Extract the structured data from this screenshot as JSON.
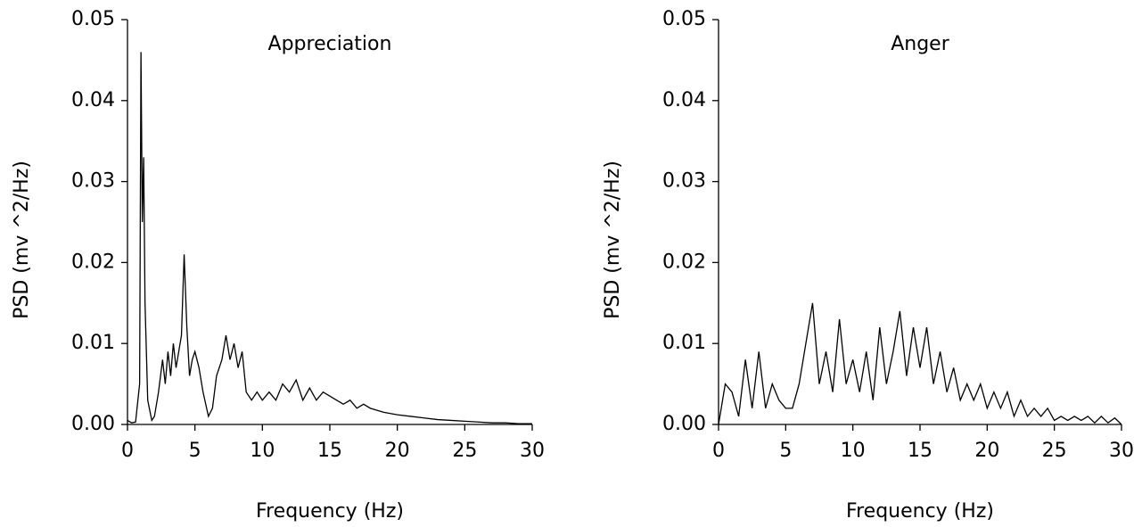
{
  "chart_data": [
    {
      "type": "line",
      "title": "Appreciation",
      "xlabel": "Frequency (Hz)",
      "ylabel": "PSD (mv ^2/Hz)",
      "x": [
        0,
        0.3,
        0.6,
        0.9,
        1.0,
        1.1,
        1.2,
        1.3,
        1.5,
        1.8,
        2.0,
        2.3,
        2.6,
        2.8,
        3.0,
        3.2,
        3.4,
        3.6,
        3.8,
        4.0,
        4.2,
        4.4,
        4.6,
        4.8,
        5.0,
        5.3,
        5.6,
        6.0,
        6.3,
        6.6,
        7.0,
        7.3,
        7.6,
        7.9,
        8.2,
        8.5,
        8.8,
        9.2,
        9.6,
        10,
        10.5,
        11,
        11.5,
        12,
        12.5,
        13,
        13.5,
        14,
        14.5,
        15,
        15.5,
        16,
        16.5,
        17,
        17.5,
        18,
        19,
        20,
        21,
        22,
        23,
        24,
        25,
        26,
        27,
        28,
        29,
        30
      ],
      "series": [
        {
          "color": "#000000",
          "values": [
            0.0005,
            0.0002,
            0.0003,
            0.005,
            0.046,
            0.025,
            0.033,
            0.015,
            0.003,
            0.0005,
            0.001,
            0.004,
            0.008,
            0.005,
            0.009,
            0.006,
            0.01,
            0.007,
            0.009,
            0.011,
            0.021,
            0.012,
            0.006,
            0.008,
            0.009,
            0.007,
            0.004,
            0.001,
            0.002,
            0.006,
            0.008,
            0.011,
            0.008,
            0.01,
            0.007,
            0.009,
            0.004,
            0.003,
            0.004,
            0.003,
            0.004,
            0.003,
            0.005,
            0.004,
            0.0055,
            0.003,
            0.0045,
            0.003,
            0.004,
            0.0035,
            0.003,
            0.0025,
            0.003,
            0.002,
            0.0025,
            0.002,
            0.0015,
            0.0012,
            0.001,
            0.0008,
            0.0006,
            0.0005,
            0.0004,
            0.0003,
            0.0002,
            0.0002,
            0.0001,
            0.0001
          ]
        }
      ],
      "xlim": [
        0,
        30
      ],
      "xticks": [
        0,
        5,
        10,
        15,
        20,
        25,
        30
      ],
      "ylim": [
        0,
        0.05
      ],
      "yticks": [
        {
          "value": 0,
          "label": "0.00"
        },
        0.01,
        0.02,
        0.03,
        0.04,
        0.05
      ]
    },
    {
      "type": "line",
      "title": "Anger",
      "xlabel": "Frequency (Hz)",
      "ylabel": "PSD (mv ^2/Hz)",
      "x": [
        0,
        0.5,
        1,
        1.5,
        2,
        2.5,
        3,
        3.5,
        4,
        4.5,
        5,
        5.5,
        6,
        6.5,
        7,
        7.5,
        8,
        8.5,
        9,
        9.5,
        10,
        10.5,
        11,
        11.5,
        12,
        12.5,
        13,
        13.5,
        14,
        14.5,
        15,
        15.5,
        16,
        16.5,
        17,
        17.5,
        18,
        18.5,
        19,
        19.5,
        20,
        20.5,
        21,
        21.5,
        22,
        22.5,
        23,
        23.5,
        24,
        24.5,
        25,
        25.5,
        26,
        26.5,
        27,
        27.5,
        28,
        28.5,
        29,
        29.5,
        30
      ],
      "series": [
        {
          "color": "#000000",
          "values": [
            0,
            0.005,
            0.004,
            0.001,
            0.008,
            0.002,
            0.009,
            0.002,
            0.005,
            0.003,
            0.002,
            0.002,
            0.005,
            0.01,
            0.015,
            0.005,
            0.009,
            0.004,
            0.013,
            0.005,
            0.008,
            0.004,
            0.009,
            0.003,
            0.012,
            0.005,
            0.009,
            0.014,
            0.006,
            0.012,
            0.007,
            0.012,
            0.005,
            0.009,
            0.004,
            0.007,
            0.003,
            0.005,
            0.003,
            0.005,
            0.002,
            0.004,
            0.002,
            0.004,
            0.001,
            0.003,
            0.001,
            0.002,
            0.001,
            0.002,
            0.0005,
            0.001,
            0.0005,
            0.001,
            0.0005,
            0.001,
            0.0002,
            0.001,
            0.0002,
            0.0008,
            0
          ]
        }
      ],
      "xlim": [
        0,
        30
      ],
      "xticks": [
        0,
        5,
        10,
        15,
        20,
        25,
        30
      ],
      "ylim": [
        0,
        0.05
      ],
      "yticks": [
        {
          "value": 0,
          "label": "0.00"
        },
        0.01,
        0.02,
        0.03,
        0.04,
        0.05
      ]
    }
  ]
}
